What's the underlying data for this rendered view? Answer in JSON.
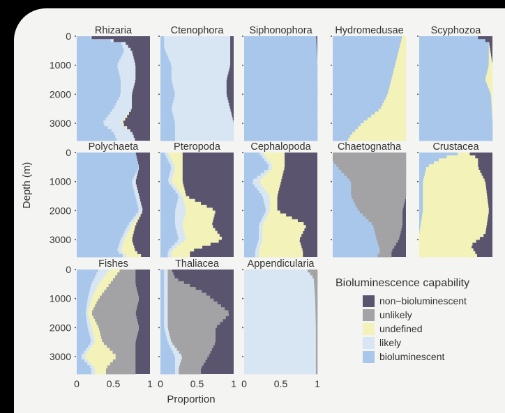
{
  "chart_data": {
    "type": "area",
    "title": "",
    "ylabel": "Depth (m)",
    "xlabel": "Proportion",
    "ylim": [
      0,
      3600
    ],
    "xlim": [
      0,
      1
    ],
    "yticks": [
      {
        "label": "0",
        "value": 0
      },
      {
        "label": "1000",
        "value": 1000
      },
      {
        "label": "2000",
        "value": 2000
      },
      {
        "label": "3000",
        "value": 3000
      }
    ],
    "xticks": [
      {
        "label": "0",
        "value": 0
      },
      {
        "label": "0.5",
        "value": 0.5
      },
      {
        "label": "1",
        "value": 1
      }
    ],
    "legend": {
      "title": "Bioluminescence capability",
      "placement": "bottom-right",
      "items": [
        {
          "key": "non",
          "label": "non−bioluminescent",
          "color": "#5a546f"
        },
        {
          "key": "unl",
          "label": "unlikely",
          "color": "#a3a3a5"
        },
        {
          "key": "und",
          "label": "undefined",
          "color": "#f2f2b9"
        },
        {
          "key": "lik",
          "label": "likely",
          "color": "#d8e6f4"
        },
        {
          "key": "bio",
          "label": "bioluminescent",
          "color": "#a9c7ea"
        }
      ]
    },
    "panels": [
      {
        "name": "Rhizaria",
        "profile": [
          {
            "depth": 0,
            "bio": 0.05,
            "lik": 0.0,
            "und": 0.0,
            "unl": 0.0
          },
          {
            "depth": 200,
            "bio": 0.6,
            "lik": 0.05,
            "und": 0.0,
            "unl": 0.0
          },
          {
            "depth": 500,
            "bio": 0.65,
            "lik": 0.1,
            "und": 0.0,
            "unl": 0.0
          },
          {
            "depth": 1000,
            "bio": 0.55,
            "lik": 0.25,
            "und": 0.0,
            "unl": 0.0
          },
          {
            "depth": 1500,
            "bio": 0.6,
            "lik": 0.2,
            "und": 0.0,
            "unl": 0.0
          },
          {
            "depth": 2000,
            "bio": 0.6,
            "lik": 0.15,
            "und": 0.0,
            "unl": 0.0
          },
          {
            "depth": 2500,
            "bio": 0.5,
            "lik": 0.25,
            "und": 0.0,
            "unl": 0.0
          },
          {
            "depth": 3000,
            "bio": 0.35,
            "lik": 0.25,
            "und": 0.02,
            "unl": 0.0
          },
          {
            "depth": 3300,
            "bio": 0.5,
            "lik": 0.25,
            "und": 0.0,
            "unl": 0.0
          },
          {
            "depth": 3600,
            "bio": 0.55,
            "lik": 0.25,
            "und": 0.0,
            "unl": 0.0
          }
        ]
      },
      {
        "name": "Ctenophora",
        "profile": [
          {
            "depth": 0,
            "bio": 0.05,
            "lik": 0.9,
            "und": 0.0,
            "unl": 0.0
          },
          {
            "depth": 400,
            "bio": 0.05,
            "lik": 0.9,
            "und": 0.0,
            "unl": 0.0
          },
          {
            "depth": 1000,
            "bio": 0.15,
            "lik": 0.8,
            "und": 0.0,
            "unl": 0.0
          },
          {
            "depth": 1500,
            "bio": 0.15,
            "lik": 0.75,
            "und": 0.0,
            "unl": 0.0
          },
          {
            "depth": 2000,
            "bio": 0.2,
            "lik": 0.7,
            "und": 0.0,
            "unl": 0.0
          },
          {
            "depth": 2500,
            "bio": 0.15,
            "lik": 0.8,
            "und": 0.0,
            "unl": 0.0
          },
          {
            "depth": 3000,
            "bio": 0.2,
            "lik": 0.8,
            "und": 0.0,
            "unl": 0.0
          },
          {
            "depth": 3600,
            "bio": 0.2,
            "lik": 0.8,
            "und": 0.0,
            "unl": 0.0
          }
        ]
      },
      {
        "name": "Siphonophora",
        "profile": [
          {
            "depth": 0,
            "bio": 0.98,
            "lik": 0.0,
            "und": 0.0,
            "unl": 0.0
          },
          {
            "depth": 1000,
            "bio": 1.0,
            "lik": 0.0,
            "und": 0.0,
            "unl": 0.0
          },
          {
            "depth": 2000,
            "bio": 1.0,
            "lik": 0.0,
            "und": 0.0,
            "unl": 0.0
          },
          {
            "depth": 3000,
            "bio": 1.0,
            "lik": 0.0,
            "und": 0.0,
            "unl": 0.0
          },
          {
            "depth": 3600,
            "bio": 1.0,
            "lik": 0.0,
            "und": 0.0,
            "unl": 0.0
          }
        ]
      },
      {
        "name": "Hydromedusae",
        "profile": [
          {
            "depth": 0,
            "bio": 0.95,
            "lik": 0.0,
            "und": 0.05,
            "unl": 0.0
          },
          {
            "depth": 500,
            "bio": 0.9,
            "lik": 0.0,
            "und": 0.1,
            "unl": 0.0
          },
          {
            "depth": 1000,
            "bio": 0.85,
            "lik": 0.0,
            "und": 0.15,
            "unl": 0.0
          },
          {
            "depth": 1500,
            "bio": 0.8,
            "lik": 0.0,
            "und": 0.2,
            "unl": 0.0
          },
          {
            "depth": 2000,
            "bio": 0.75,
            "lik": 0.0,
            "und": 0.25,
            "unl": 0.0
          },
          {
            "depth": 2500,
            "bio": 0.65,
            "lik": 0.0,
            "und": 0.35,
            "unl": 0.0
          },
          {
            "depth": 3000,
            "bio": 0.4,
            "lik": 0.0,
            "und": 0.6,
            "unl": 0.0
          },
          {
            "depth": 3400,
            "bio": 0.25,
            "lik": 0.0,
            "und": 0.75,
            "unl": 0.0
          },
          {
            "depth": 3600,
            "bio": 0.2,
            "lik": 0.0,
            "und": 0.8,
            "unl": 0.0
          }
        ]
      },
      {
        "name": "Scyphozoa",
        "profile": [
          {
            "depth": 0,
            "bio": 0.75,
            "lik": 0.0,
            "und": 0.0,
            "unl": 0.0
          },
          {
            "depth": 200,
            "bio": 0.95,
            "lik": 0.0,
            "und": 0.0,
            "unl": 0.0
          },
          {
            "depth": 1000,
            "bio": 0.95,
            "lik": 0.0,
            "und": 0.05,
            "unl": 0.0
          },
          {
            "depth": 1500,
            "bio": 0.9,
            "lik": 0.0,
            "und": 0.1,
            "unl": 0.0
          },
          {
            "depth": 2000,
            "bio": 0.98,
            "lik": 0.0,
            "und": 0.02,
            "unl": 0.0
          },
          {
            "depth": 3000,
            "bio": 1.0,
            "lik": 0.0,
            "und": 0.0,
            "unl": 0.0
          },
          {
            "depth": 3600,
            "bio": 1.0,
            "lik": 0.0,
            "und": 0.0,
            "unl": 0.0
          }
        ]
      },
      {
        "name": "Polychaeta",
        "profile": [
          {
            "depth": 0,
            "bio": 0.8,
            "lik": 0.0,
            "und": 0.0,
            "unl": 0.0
          },
          {
            "depth": 500,
            "bio": 0.85,
            "lik": 0.0,
            "und": 0.0,
            "unl": 0.0
          },
          {
            "depth": 1000,
            "bio": 0.75,
            "lik": 0.05,
            "und": 0.0,
            "unl": 0.0
          },
          {
            "depth": 1500,
            "bio": 0.8,
            "lik": 0.05,
            "und": 0.0,
            "unl": 0.0
          },
          {
            "depth": 2000,
            "bio": 0.85,
            "lik": 0.05,
            "und": 0.0,
            "unl": 0.0
          },
          {
            "depth": 2500,
            "bio": 0.7,
            "lik": 0.05,
            "und": 0.05,
            "unl": 0.0
          },
          {
            "depth": 3000,
            "bio": 0.6,
            "lik": 0.05,
            "und": 0.1,
            "unl": 0.0
          },
          {
            "depth": 3400,
            "bio": 0.55,
            "lik": 0.05,
            "und": 0.2,
            "unl": 0.0
          },
          {
            "depth": 3600,
            "bio": 0.65,
            "lik": 0.05,
            "und": 0.2,
            "unl": 0.0
          }
        ]
      },
      {
        "name": "Pteropoda",
        "profile": [
          {
            "depth": 0,
            "bio": 0.05,
            "lik": 0.05,
            "und": 0.2,
            "unl": 0.0
          },
          {
            "depth": 500,
            "bio": 0.15,
            "lik": 0.05,
            "und": 0.1,
            "unl": 0.0
          },
          {
            "depth": 1000,
            "bio": 0.1,
            "lik": 0.05,
            "und": 0.15,
            "unl": 0.0
          },
          {
            "depth": 1500,
            "bio": 0.25,
            "lik": 0.05,
            "und": 0.05,
            "unl": 0.0
          },
          {
            "depth": 2000,
            "bio": 0.2,
            "lik": 0.15,
            "und": 0.4,
            "unl": 0.0
          },
          {
            "depth": 2500,
            "bio": 0.2,
            "lik": 0.1,
            "und": 0.4,
            "unl": 0.0
          },
          {
            "depth": 3000,
            "bio": 0.25,
            "lik": 0.1,
            "und": 0.5,
            "unl": 0.0
          },
          {
            "depth": 3400,
            "bio": 0.1,
            "lik": 0.05,
            "und": 0.25,
            "unl": 0.0
          },
          {
            "depth": 3600,
            "bio": 0.1,
            "lik": 0.05,
            "und": 0.25,
            "unl": 0.0
          }
        ]
      },
      {
        "name": "Cephalopoda",
        "profile": [
          {
            "depth": 0,
            "bio": 0.2,
            "lik": 0.05,
            "und": 0.3,
            "unl": 0.0
          },
          {
            "depth": 500,
            "bio": 0.35,
            "lik": 0.05,
            "und": 0.15,
            "unl": 0.0
          },
          {
            "depth": 1000,
            "bio": 0.1,
            "lik": 0.1,
            "und": 0.3,
            "unl": 0.0
          },
          {
            "depth": 1500,
            "bio": 0.25,
            "lik": 0.1,
            "und": 0.1,
            "unl": 0.0
          },
          {
            "depth": 2000,
            "bio": 0.3,
            "lik": 0.05,
            "und": 0.1,
            "unl": 0.0
          },
          {
            "depth": 2500,
            "bio": 0.2,
            "lik": 0.05,
            "und": 0.6,
            "unl": 0.0
          },
          {
            "depth": 3000,
            "bio": 0.2,
            "lik": 0.05,
            "und": 0.5,
            "unl": 0.0
          },
          {
            "depth": 3400,
            "bio": 0.15,
            "lik": 0.05,
            "und": 0.6,
            "unl": 0.0
          },
          {
            "depth": 3600,
            "bio": 0.15,
            "lik": 0.05,
            "und": 0.6,
            "unl": 0.0
          }
        ]
      },
      {
        "name": "Chaetognatha",
        "profile": [
          {
            "depth": 0,
            "bio": 0.0,
            "lik": 0.0,
            "und": 0.0,
            "unl": 1.0
          },
          {
            "depth": 300,
            "bio": 0.0,
            "lik": 0.0,
            "und": 0.0,
            "unl": 1.0
          },
          {
            "depth": 600,
            "bio": 0.1,
            "lik": 0.0,
            "und": 0.0,
            "unl": 0.9
          },
          {
            "depth": 1000,
            "bio": 0.25,
            "lik": 0.0,
            "und": 0.0,
            "unl": 0.75
          },
          {
            "depth": 1500,
            "bio": 0.25,
            "lik": 0.0,
            "und": 0.0,
            "unl": 0.75
          },
          {
            "depth": 2000,
            "bio": 0.35,
            "lik": 0.0,
            "und": 0.0,
            "unl": 0.6
          },
          {
            "depth": 2500,
            "bio": 0.55,
            "lik": 0.0,
            "und": 0.0,
            "unl": 0.4
          },
          {
            "depth": 3000,
            "bio": 0.6,
            "lik": 0.0,
            "und": 0.0,
            "unl": 0.3
          },
          {
            "depth": 3400,
            "bio": 0.65,
            "lik": 0.0,
            "und": 0.0,
            "unl": 0.15
          },
          {
            "depth": 3600,
            "bio": 0.6,
            "lik": 0.0,
            "und": 0.0,
            "unl": 0.2
          }
        ]
      },
      {
        "name": "Crustacea",
        "profile": [
          {
            "depth": 0,
            "bio": 0.6,
            "lik": 0.0,
            "und": 0.05,
            "unl": 0.0
          },
          {
            "depth": 200,
            "bio": 0.3,
            "lik": 0.0,
            "und": 0.5,
            "unl": 0.0
          },
          {
            "depth": 500,
            "bio": 0.1,
            "lik": 0.0,
            "und": 0.7,
            "unl": 0.0
          },
          {
            "depth": 1000,
            "bio": 0.05,
            "lik": 0.0,
            "und": 0.85,
            "unl": 0.0
          },
          {
            "depth": 2000,
            "bio": 0.05,
            "lik": 0.0,
            "und": 0.9,
            "unl": 0.0
          },
          {
            "depth": 2800,
            "bio": 0.0,
            "lik": 0.0,
            "und": 0.9,
            "unl": 0.0
          },
          {
            "depth": 3200,
            "bio": 0.0,
            "lik": 0.0,
            "und": 0.7,
            "unl": 0.0
          },
          {
            "depth": 3600,
            "bio": 0.0,
            "lik": 0.0,
            "und": 0.8,
            "unl": 0.0
          }
        ]
      },
      {
        "name": "Fishes",
        "profile": [
          {
            "depth": 0,
            "bio": 0.3,
            "lik": 0.15,
            "und": 0.15,
            "unl": 0.2
          },
          {
            "depth": 500,
            "bio": 0.2,
            "lik": 0.1,
            "und": 0.15,
            "unl": 0.35
          },
          {
            "depth": 1000,
            "bio": 0.15,
            "lik": 0.05,
            "und": 0.1,
            "unl": 0.55
          },
          {
            "depth": 1500,
            "bio": 0.12,
            "lik": 0.03,
            "und": 0.05,
            "unl": 0.6
          },
          {
            "depth": 2000,
            "bio": 0.15,
            "lik": 0.05,
            "und": 0.1,
            "unl": 0.55
          },
          {
            "depth": 2500,
            "bio": 0.2,
            "lik": 0.05,
            "und": 0.1,
            "unl": 0.45
          },
          {
            "depth": 3000,
            "bio": 0.05,
            "lik": 0.05,
            "und": 0.45,
            "unl": 0.25
          },
          {
            "depth": 3400,
            "bio": 0.2,
            "lik": 0.05,
            "und": 0.15,
            "unl": 0.4
          },
          {
            "depth": 3600,
            "bio": 0.2,
            "lik": 0.05,
            "und": 0.15,
            "unl": 0.4
          }
        ]
      },
      {
        "name": "Thaliacea",
        "profile": [
          {
            "depth": 0,
            "bio": 0.05,
            "lik": 0.05,
            "und": 0.0,
            "unl": 0.05
          },
          {
            "depth": 300,
            "bio": 0.05,
            "lik": 0.05,
            "und": 0.0,
            "unl": 0.1
          },
          {
            "depth": 800,
            "bio": 0.05,
            "lik": 0.05,
            "und": 0.0,
            "unl": 0.5
          },
          {
            "depth": 1500,
            "bio": 0.05,
            "lik": 0.05,
            "und": 0.0,
            "unl": 0.85
          },
          {
            "depth": 2000,
            "bio": 0.05,
            "lik": 0.05,
            "und": 0.0,
            "unl": 0.65
          },
          {
            "depth": 2500,
            "bio": 0.1,
            "lik": 0.05,
            "und": 0.0,
            "unl": 0.6
          },
          {
            "depth": 3000,
            "bio": 0.2,
            "lik": 0.1,
            "und": 0.0,
            "unl": 0.35
          },
          {
            "depth": 3400,
            "bio": 0.2,
            "lik": 0.05,
            "und": 0.0,
            "unl": 0.3
          },
          {
            "depth": 3600,
            "bio": 0.2,
            "lik": 0.05,
            "und": 0.0,
            "unl": 0.3
          }
        ]
      },
      {
        "name": "Appendicularia",
        "profile": [
          {
            "depth": 0,
            "bio": 0.0,
            "lik": 0.85,
            "und": 0.0,
            "unl": 0.15
          },
          {
            "depth": 300,
            "bio": 0.0,
            "lik": 0.95,
            "und": 0.0,
            "unl": 0.05
          },
          {
            "depth": 1000,
            "bio": 0.0,
            "lik": 0.97,
            "und": 0.0,
            "unl": 0.03
          },
          {
            "depth": 2000,
            "bio": 0.0,
            "lik": 0.98,
            "und": 0.0,
            "unl": 0.02
          },
          {
            "depth": 3000,
            "bio": 0.0,
            "lik": 0.98,
            "und": 0.0,
            "unl": 0.02
          },
          {
            "depth": 3600,
            "bio": 0.0,
            "lik": 0.98,
            "und": 0.0,
            "unl": 0.02
          }
        ]
      }
    ]
  }
}
